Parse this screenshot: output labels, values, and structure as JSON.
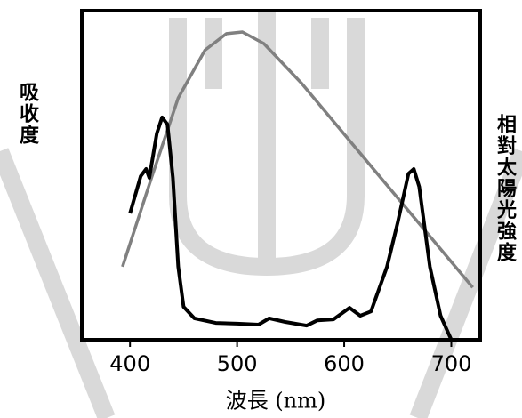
{
  "chart_data": {
    "type": "line",
    "xlabel": "波長 (nm)",
    "ylabel": "吸收度",
    "y2label": "相對太陽光強度",
    "xlim": [
      355,
      727
    ],
    "xticks": [
      400,
      500,
      600,
      700
    ],
    "ylim": [
      0,
      100
    ],
    "y2lim": [
      0,
      100
    ],
    "series": [
      {
        "color": "#000000",
        "axis": "y",
        "x": [
          400,
          410,
          415,
          418,
          425,
          430,
          435,
          440,
          445,
          450,
          460,
          480,
          500,
          520,
          530,
          545,
          565,
          575,
          590,
          605,
          615,
          625,
          640,
          650,
          660,
          665,
          670,
          680,
          690,
          700
        ],
        "values": [
          38.4,
          49.7,
          51.9,
          49.2,
          62.7,
          67.6,
          65.4,
          49.2,
          22.2,
          10,
          6.5,
          5.1,
          4.9,
          4.6,
          6.5,
          5.4,
          4.3,
          5.9,
          6.2,
          9.7,
          7.3,
          8.6,
          22.2,
          35.7,
          50.5,
          51.9,
          46.5,
          22.2,
          7.3,
          0
        ]
      },
      {
        "color": "#808080",
        "axis": "y2",
        "x": [
          393,
          420,
          445,
          470,
          490,
          505,
          525,
          560,
          720
        ],
        "values": [
          22.2,
          49.2,
          73.5,
          88,
          93,
          93.5,
          90,
          78,
          15.9
        ]
      }
    ]
  }
}
